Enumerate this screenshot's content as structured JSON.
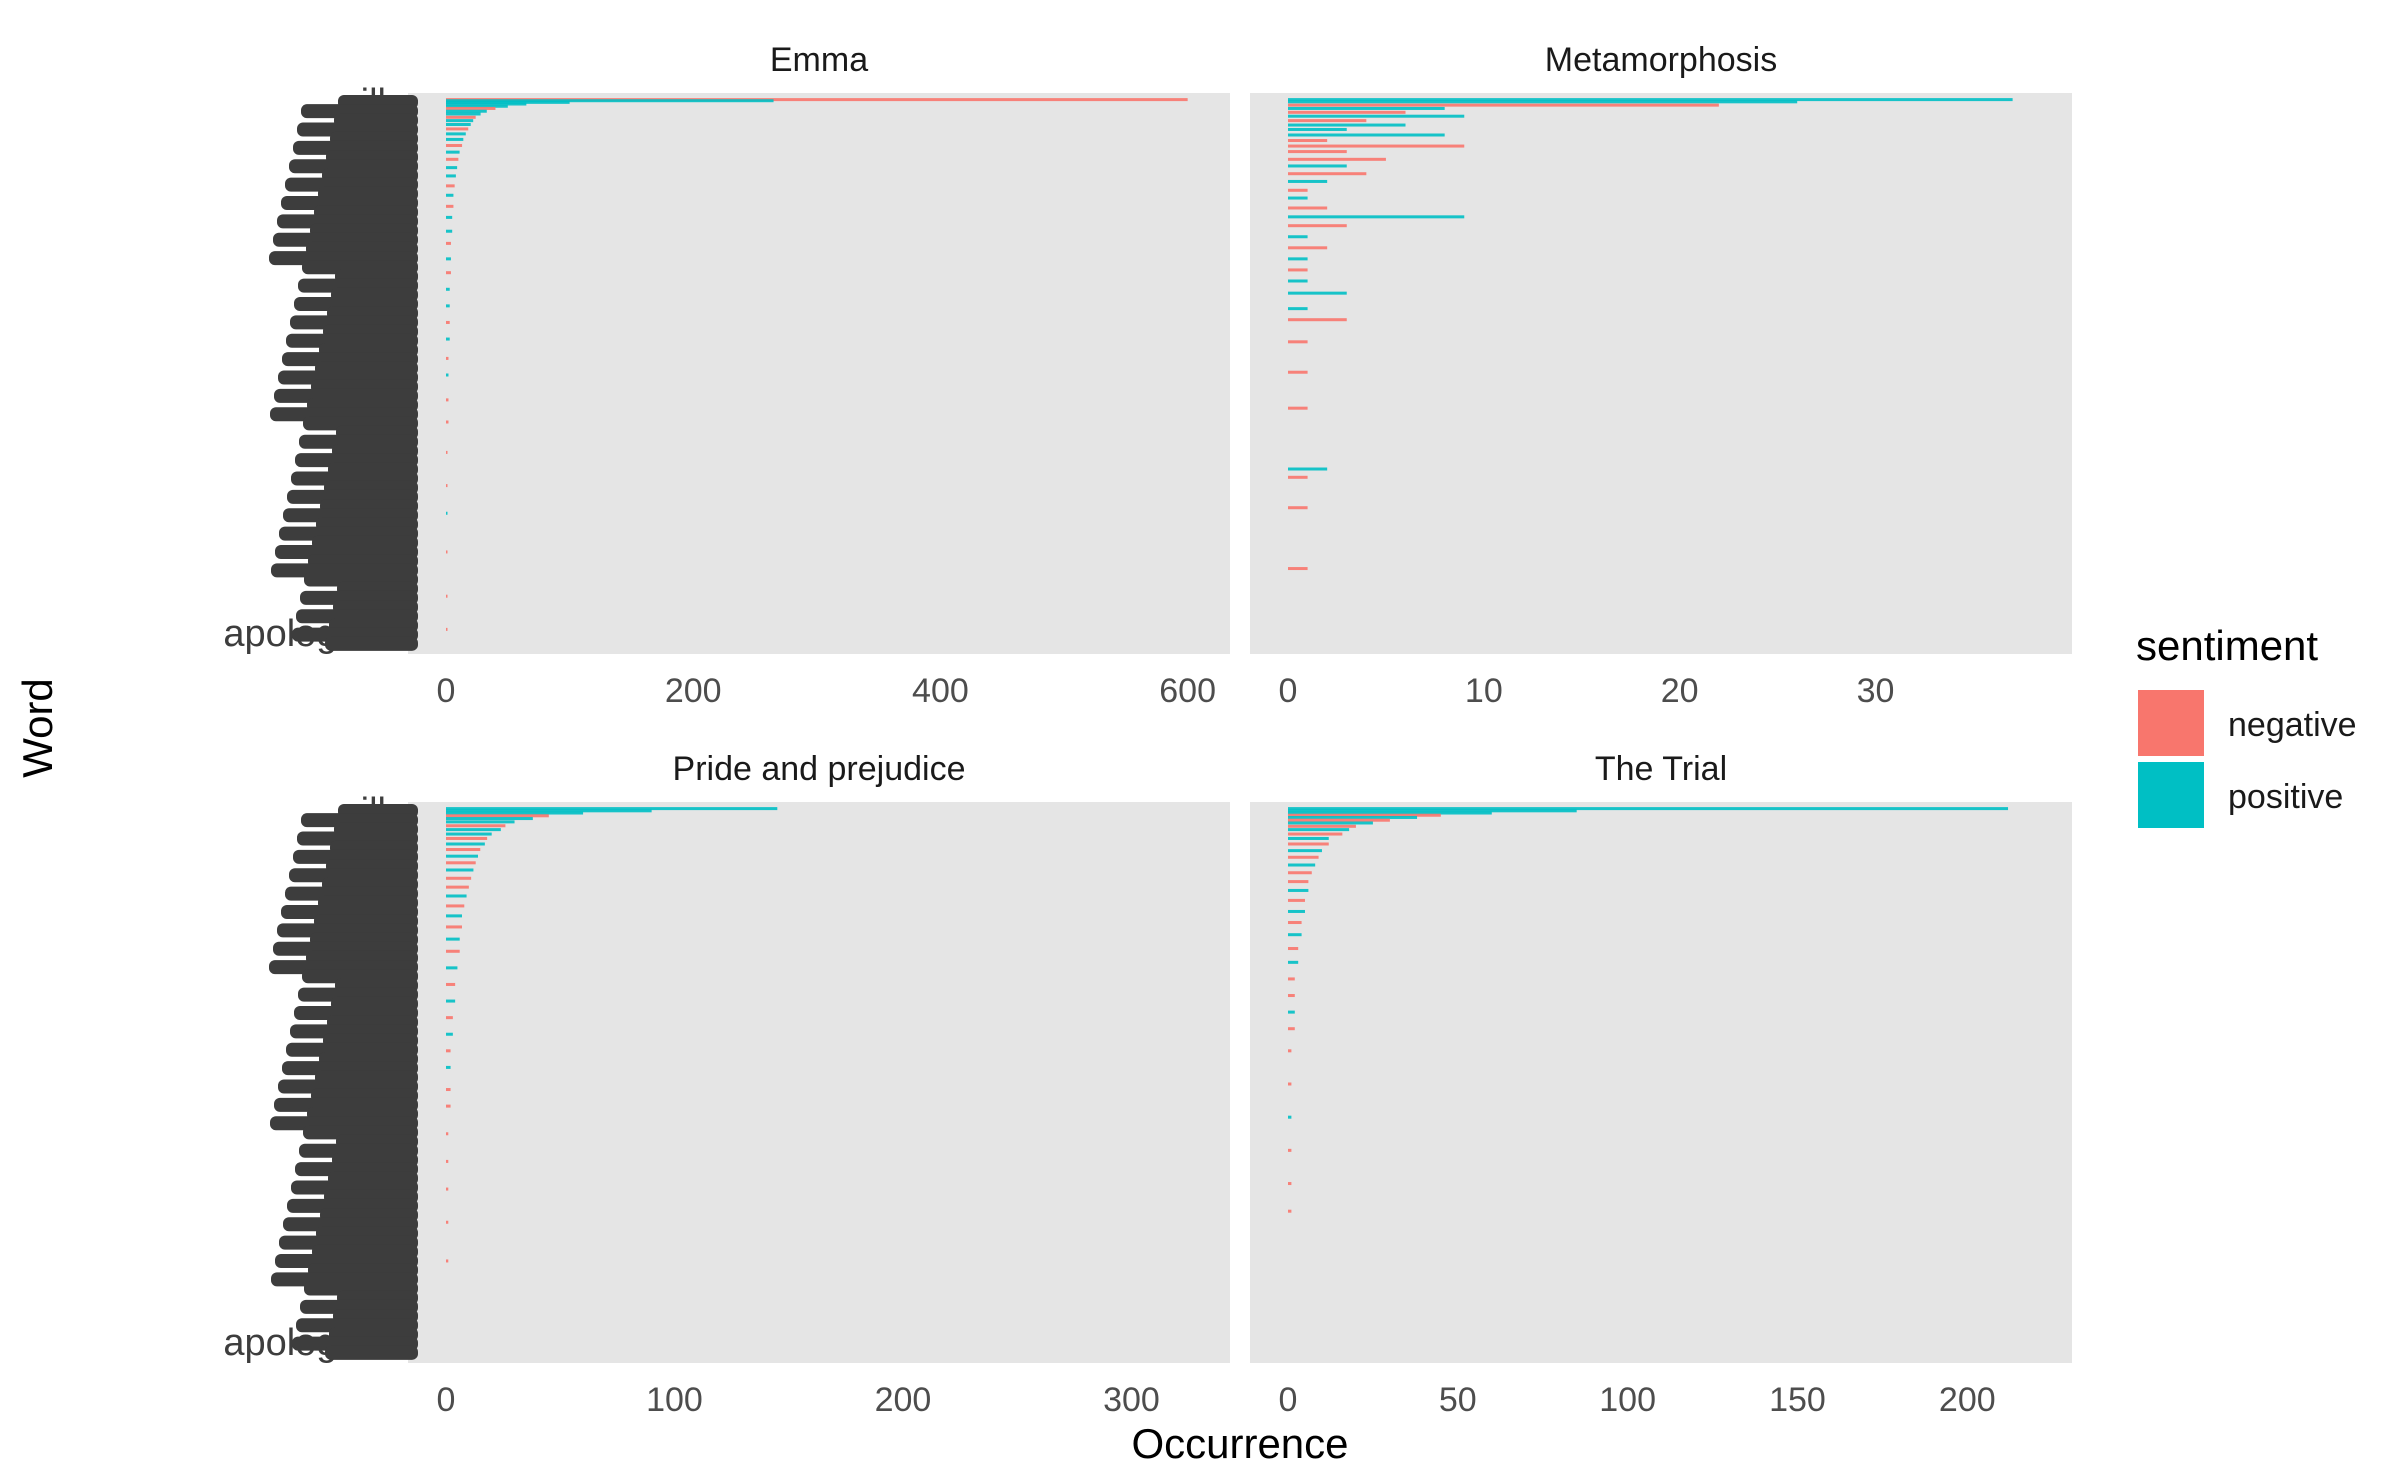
{
  "chart_data": {
    "type": "bar",
    "orientation": "horizontal",
    "facet_layout": "2x2",
    "xlabel": "Occurrence",
    "ylabel": "Word",
    "legend": {
      "title": "sentiment",
      "position": "right",
      "entries": [
        {
          "name": "negative",
          "color": "#F8766D"
        },
        {
          "name": "positive",
          "color": "#00BFC4"
        }
      ]
    },
    "y_tick_labels": [
      "ill",
      "dis",
      "en",
      "ac",
      "en",
      "rec",
      "inc",
      "co",
      "rec",
      "c",
      "d",
      "acc",
      "mo",
      "mis",
      "th",
      "as",
      "dis",
      "it",
      "de",
      "tr",
      "en",
      "mis",
      "co",
      "co",
      "m",
      "ae",
      "apologize"
    ],
    "panels": [
      {
        "title": "Emma",
        "xlim": [
          0,
          610
        ],
        "xticks": [
          0,
          200,
          400,
          600
        ],
        "bars": [
          {
            "y": 0.002,
            "value": 600,
            "sentiment": "negative"
          },
          {
            "y": 0.004,
            "value": 265,
            "sentiment": "positive"
          },
          {
            "y": 0.007,
            "value": 100,
            "sentiment": "positive"
          },
          {
            "y": 0.01,
            "value": 65,
            "sentiment": "positive"
          },
          {
            "y": 0.014,
            "value": 50,
            "sentiment": "positive"
          },
          {
            "y": 0.018,
            "value": 40,
            "sentiment": "negative"
          },
          {
            "y": 0.023,
            "value": 33,
            "sentiment": "positive"
          },
          {
            "y": 0.028,
            "value": 28,
            "sentiment": "positive"
          },
          {
            "y": 0.034,
            "value": 24,
            "sentiment": "negative"
          },
          {
            "y": 0.04,
            "value": 22,
            "sentiment": "positive"
          },
          {
            "y": 0.047,
            "value": 20,
            "sentiment": "positive"
          },
          {
            "y": 0.055,
            "value": 18,
            "sentiment": "negative"
          },
          {
            "y": 0.064,
            "value": 16,
            "sentiment": "positive"
          },
          {
            "y": 0.074,
            "value": 14,
            "sentiment": "positive"
          },
          {
            "y": 0.085,
            "value": 13,
            "sentiment": "negative"
          },
          {
            "y": 0.097,
            "value": 11,
            "sentiment": "positive"
          },
          {
            "y": 0.11,
            "value": 10,
            "sentiment": "negative"
          },
          {
            "y": 0.125,
            "value": 9,
            "sentiment": "positive"
          },
          {
            "y": 0.14,
            "value": 8,
            "sentiment": "positive"
          },
          {
            "y": 0.158,
            "value": 7,
            "sentiment": "negative"
          },
          {
            "y": 0.175,
            "value": 6,
            "sentiment": "positive"
          },
          {
            "y": 0.195,
            "value": 6,
            "sentiment": "negative"
          },
          {
            "y": 0.215,
            "value": 5,
            "sentiment": "positive"
          },
          {
            "y": 0.24,
            "value": 5,
            "sentiment": "positive"
          },
          {
            "y": 0.262,
            "value": 4,
            "sentiment": "negative"
          },
          {
            "y": 0.29,
            "value": 4,
            "sentiment": "positive"
          },
          {
            "y": 0.315,
            "value": 4,
            "sentiment": "negative"
          },
          {
            "y": 0.345,
            "value": 3,
            "sentiment": "positive"
          },
          {
            "y": 0.375,
            "value": 3,
            "sentiment": "positive"
          },
          {
            "y": 0.405,
            "value": 3,
            "sentiment": "negative"
          },
          {
            "y": 0.435,
            "value": 3,
            "sentiment": "positive"
          },
          {
            "y": 0.47,
            "value": 2,
            "sentiment": "negative"
          },
          {
            "y": 0.5,
            "value": 2,
            "sentiment": "positive"
          },
          {
            "y": 0.545,
            "value": 2,
            "sentiment": "negative"
          },
          {
            "y": 0.585,
            "value": 2,
            "sentiment": "negative"
          },
          {
            "y": 0.64,
            "value": 1,
            "sentiment": "negative"
          },
          {
            "y": 0.7,
            "value": 1,
            "sentiment": "negative"
          },
          {
            "y": 0.75,
            "value": 1,
            "sentiment": "positive"
          },
          {
            "y": 0.82,
            "value": 1,
            "sentiment": "negative"
          },
          {
            "y": 0.9,
            "value": 1,
            "sentiment": "negative"
          },
          {
            "y": 0.96,
            "value": 1,
            "sentiment": "negative"
          }
        ]
      },
      {
        "title": "Metamorphosis",
        "xlim": [
          0,
          38.5
        ],
        "xticks": [
          0,
          10,
          20,
          30
        ],
        "bars": [
          {
            "y": 0.002,
            "value": 37,
            "sentiment": "positive"
          },
          {
            "y": 0.006,
            "value": 26,
            "sentiment": "positive"
          },
          {
            "y": 0.012,
            "value": 22,
            "sentiment": "negative"
          },
          {
            "y": 0.018,
            "value": 8,
            "sentiment": "positive"
          },
          {
            "y": 0.025,
            "value": 6,
            "sentiment": "negative"
          },
          {
            "y": 0.032,
            "value": 9,
            "sentiment": "positive"
          },
          {
            "y": 0.04,
            "value": 4,
            "sentiment": "negative"
          },
          {
            "y": 0.048,
            "value": 6,
            "sentiment": "positive"
          },
          {
            "y": 0.056,
            "value": 3,
            "sentiment": "positive"
          },
          {
            "y": 0.066,
            "value": 8,
            "sentiment": "positive"
          },
          {
            "y": 0.076,
            "value": 2,
            "sentiment": "negative"
          },
          {
            "y": 0.086,
            "value": 9,
            "sentiment": "negative"
          },
          {
            "y": 0.096,
            "value": 3,
            "sentiment": "negative"
          },
          {
            "y": 0.11,
            "value": 5,
            "sentiment": "negative"
          },
          {
            "y": 0.122,
            "value": 3,
            "sentiment": "positive"
          },
          {
            "y": 0.136,
            "value": 4,
            "sentiment": "negative"
          },
          {
            "y": 0.15,
            "value": 2,
            "sentiment": "positive"
          },
          {
            "y": 0.166,
            "value": 1,
            "sentiment": "negative"
          },
          {
            "y": 0.18,
            "value": 1,
            "sentiment": "positive"
          },
          {
            "y": 0.198,
            "value": 2,
            "sentiment": "negative"
          },
          {
            "y": 0.214,
            "value": 9,
            "sentiment": "positive"
          },
          {
            "y": 0.23,
            "value": 3,
            "sentiment": "negative"
          },
          {
            "y": 0.25,
            "value": 1,
            "sentiment": "positive"
          },
          {
            "y": 0.27,
            "value": 2,
            "sentiment": "negative"
          },
          {
            "y": 0.29,
            "value": 1,
            "sentiment": "positive"
          },
          {
            "y": 0.31,
            "value": 1,
            "sentiment": "negative"
          },
          {
            "y": 0.33,
            "value": 1,
            "sentiment": "positive"
          },
          {
            "y": 0.352,
            "value": 3,
            "sentiment": "positive"
          },
          {
            "y": 0.38,
            "value": 1,
            "sentiment": "positive"
          },
          {
            "y": 0.4,
            "value": 3,
            "sentiment": "negative"
          },
          {
            "y": 0.44,
            "value": 1,
            "sentiment": "negative"
          },
          {
            "y": 0.495,
            "value": 1,
            "sentiment": "negative"
          },
          {
            "y": 0.56,
            "value": 1,
            "sentiment": "negative"
          },
          {
            "y": 0.67,
            "value": 2,
            "sentiment": "positive"
          },
          {
            "y": 0.685,
            "value": 1,
            "sentiment": "negative"
          },
          {
            "y": 0.74,
            "value": 1,
            "sentiment": "negative"
          },
          {
            "y": 0.85,
            "value": 1,
            "sentiment": "negative"
          }
        ]
      },
      {
        "title": "Pride and prejudice",
        "xlim": [
          0,
          330
        ],
        "xticks": [
          0,
          100,
          200,
          300
        ],
        "bars": [
          {
            "y": 0.002,
            "value": 145,
            "sentiment": "positive"
          },
          {
            "y": 0.006,
            "value": 90,
            "sentiment": "positive"
          },
          {
            "y": 0.01,
            "value": 60,
            "sentiment": "positive"
          },
          {
            "y": 0.015,
            "value": 45,
            "sentiment": "negative"
          },
          {
            "y": 0.02,
            "value": 38,
            "sentiment": "positive"
          },
          {
            "y": 0.026,
            "value": 30,
            "sentiment": "positive"
          },
          {
            "y": 0.033,
            "value": 26,
            "sentiment": "negative"
          },
          {
            "y": 0.04,
            "value": 24,
            "sentiment": "positive"
          },
          {
            "y": 0.048,
            "value": 20,
            "sentiment": "positive"
          },
          {
            "y": 0.056,
            "value": 18,
            "sentiment": "negative"
          },
          {
            "y": 0.066,
            "value": 17,
            "sentiment": "positive"
          },
          {
            "y": 0.076,
            "value": 15,
            "sentiment": "negative"
          },
          {
            "y": 0.088,
            "value": 14,
            "sentiment": "positive"
          },
          {
            "y": 0.1,
            "value": 13,
            "sentiment": "negative"
          },
          {
            "y": 0.113,
            "value": 12,
            "sentiment": "positive"
          },
          {
            "y": 0.128,
            "value": 11,
            "sentiment": "negative"
          },
          {
            "y": 0.144,
            "value": 10,
            "sentiment": "negative"
          },
          {
            "y": 0.16,
            "value": 9,
            "sentiment": "positive"
          },
          {
            "y": 0.178,
            "value": 8,
            "sentiment": "negative"
          },
          {
            "y": 0.196,
            "value": 7,
            "sentiment": "positive"
          },
          {
            "y": 0.216,
            "value": 7,
            "sentiment": "negative"
          },
          {
            "y": 0.238,
            "value": 6,
            "sentiment": "positive"
          },
          {
            "y": 0.26,
            "value": 6,
            "sentiment": "negative"
          },
          {
            "y": 0.29,
            "value": 5,
            "sentiment": "positive"
          },
          {
            "y": 0.32,
            "value": 4,
            "sentiment": "negative"
          },
          {
            "y": 0.35,
            "value": 4,
            "sentiment": "positive"
          },
          {
            "y": 0.38,
            "value": 3,
            "sentiment": "negative"
          },
          {
            "y": 0.41,
            "value": 3,
            "sentiment": "positive"
          },
          {
            "y": 0.44,
            "value": 2,
            "sentiment": "negative"
          },
          {
            "y": 0.47,
            "value": 2,
            "sentiment": "positive"
          },
          {
            "y": 0.51,
            "value": 2,
            "sentiment": "negative"
          },
          {
            "y": 0.54,
            "value": 2,
            "sentiment": "negative"
          },
          {
            "y": 0.59,
            "value": 1,
            "sentiment": "negative"
          },
          {
            "y": 0.64,
            "value": 1,
            "sentiment": "negative"
          },
          {
            "y": 0.69,
            "value": 1,
            "sentiment": "negative"
          },
          {
            "y": 0.75,
            "value": 1,
            "sentiment": "negative"
          },
          {
            "y": 0.82,
            "value": 1,
            "sentiment": "negative"
          }
        ]
      },
      {
        "title": "The Trial",
        "xlim": [
          0,
          222
        ],
        "xticks": [
          0,
          50,
          100,
          150,
          200
        ],
        "bars": [
          {
            "y": 0.002,
            "value": 212,
            "sentiment": "positive"
          },
          {
            "y": 0.006,
            "value": 85,
            "sentiment": "positive"
          },
          {
            "y": 0.01,
            "value": 60,
            "sentiment": "positive"
          },
          {
            "y": 0.014,
            "value": 45,
            "sentiment": "negative"
          },
          {
            "y": 0.018,
            "value": 38,
            "sentiment": "positive"
          },
          {
            "y": 0.023,
            "value": 30,
            "sentiment": "negative"
          },
          {
            "y": 0.028,
            "value": 25,
            "sentiment": "positive"
          },
          {
            "y": 0.034,
            "value": 20,
            "sentiment": "negative"
          },
          {
            "y": 0.04,
            "value": 18,
            "sentiment": "positive"
          },
          {
            "y": 0.048,
            "value": 16,
            "sentiment": "negative"
          },
          {
            "y": 0.056,
            "value": 12,
            "sentiment": "positive"
          },
          {
            "y": 0.066,
            "value": 12,
            "sentiment": "negative"
          },
          {
            "y": 0.078,
            "value": 10,
            "sentiment": "positive"
          },
          {
            "y": 0.09,
            "value": 9,
            "sentiment": "negative"
          },
          {
            "y": 0.104,
            "value": 8,
            "sentiment": "positive"
          },
          {
            "y": 0.118,
            "value": 7,
            "sentiment": "negative"
          },
          {
            "y": 0.134,
            "value": 6,
            "sentiment": "negative"
          },
          {
            "y": 0.15,
            "value": 6,
            "sentiment": "positive"
          },
          {
            "y": 0.168,
            "value": 5,
            "sentiment": "negative"
          },
          {
            "y": 0.188,
            "value": 5,
            "sentiment": "positive"
          },
          {
            "y": 0.208,
            "value": 4,
            "sentiment": "negative"
          },
          {
            "y": 0.23,
            "value": 4,
            "sentiment": "positive"
          },
          {
            "y": 0.255,
            "value": 3,
            "sentiment": "negative"
          },
          {
            "y": 0.28,
            "value": 3,
            "sentiment": "positive"
          },
          {
            "y": 0.31,
            "value": 2,
            "sentiment": "negative"
          },
          {
            "y": 0.34,
            "value": 2,
            "sentiment": "negative"
          },
          {
            "y": 0.37,
            "value": 2,
            "sentiment": "positive"
          },
          {
            "y": 0.4,
            "value": 2,
            "sentiment": "negative"
          },
          {
            "y": 0.44,
            "value": 1,
            "sentiment": "negative"
          },
          {
            "y": 0.5,
            "value": 1,
            "sentiment": "negative"
          },
          {
            "y": 0.56,
            "value": 1,
            "sentiment": "positive"
          },
          {
            "y": 0.62,
            "value": 1,
            "sentiment": "negative"
          },
          {
            "y": 0.68,
            "value": 1,
            "sentiment": "negative"
          },
          {
            "y": 0.73,
            "value": 1,
            "sentiment": "negative"
          }
        ]
      }
    ]
  }
}
